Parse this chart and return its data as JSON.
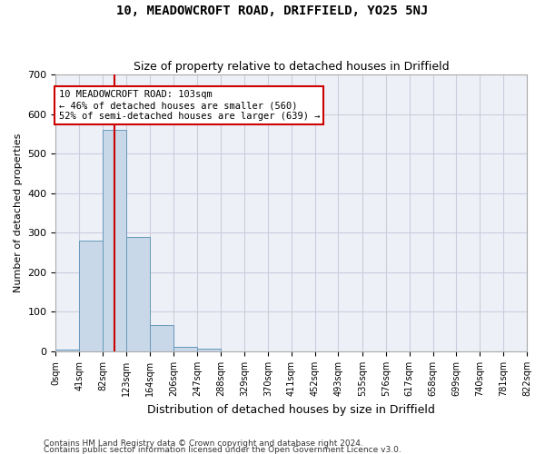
{
  "title1": "10, MEADOWCROFT ROAD, DRIFFIELD, YO25 5NJ",
  "title2": "Size of property relative to detached houses in Driffield",
  "xlabel": "Distribution of detached houses by size in Driffield",
  "ylabel": "Number of detached properties",
  "bin_edges": [
    0,
    41,
    82,
    123,
    164,
    206,
    247,
    288,
    329,
    370,
    411,
    452,
    493,
    535,
    576,
    617,
    658,
    699,
    740,
    781,
    822
  ],
  "bar_heights": [
    5,
    280,
    560,
    290,
    67,
    12,
    8,
    0,
    0,
    0,
    0,
    0,
    0,
    0,
    0,
    0,
    0,
    0,
    0,
    0
  ],
  "bar_color": "#c8d8e8",
  "bar_edgecolor": "#6699bb",
  "grid_color": "#ccccdd",
  "bg_color": "#eef0f8",
  "property_line_x": 103,
  "property_line_color": "#cc0000",
  "annotation_line1": "10 MEADOWCROFT ROAD: 103sqm",
  "annotation_line2": "← 46% of detached houses are smaller (560)",
  "annotation_line3": "52% of semi-detached houses are larger (639) →",
  "annotation_box_edgecolor": "#cc0000",
  "annotation_box_facecolor": "#ffffff",
  "ylim": [
    0,
    700
  ],
  "yticks": [
    0,
    100,
    200,
    300,
    400,
    500,
    600,
    700
  ],
  "footnote1": "Contains HM Land Registry data © Crown copyright and database right 2024.",
  "footnote2": "Contains public sector information licensed under the Open Government Licence v3.0."
}
